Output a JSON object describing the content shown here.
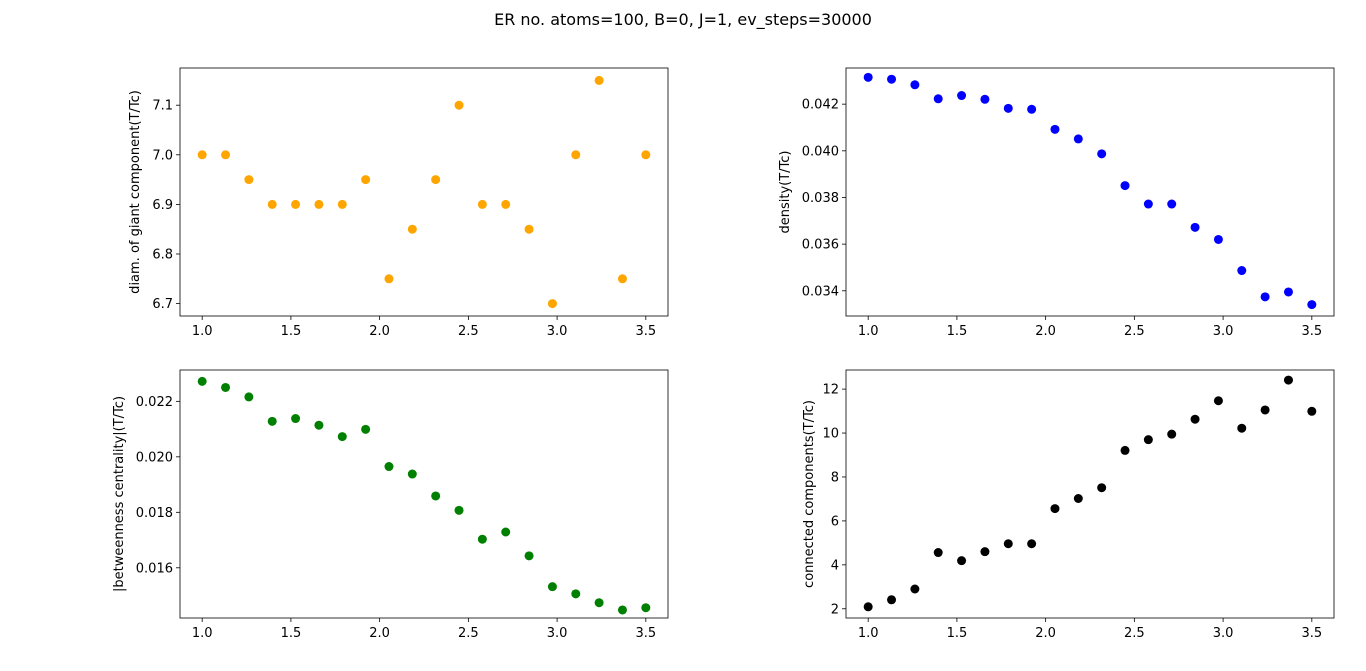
{
  "suptitle": "ER no. atoms=100,  B=0, J=1, ev_steps=30000",
  "chart_data": [
    {
      "type": "scatter",
      "position": "top-left",
      "ylabel": "diam. of giant component(T/Tc)",
      "color": "#ffa500",
      "xlim": [
        0.875,
        3.625
      ],
      "ylim": [
        6.675,
        7.175
      ],
      "xticks": [
        "1.0",
        "1.5",
        "2.0",
        "2.5",
        "3.0",
        "3.5"
      ],
      "xtick_values": [
        1.0,
        1.5,
        2.0,
        2.5,
        3.0,
        3.5
      ],
      "yticks": [
        "6.7",
        "6.8",
        "6.9",
        "7.0",
        "7.1"
      ],
      "ytick_values": [
        6.7,
        6.8,
        6.9,
        7.0,
        7.1
      ],
      "x": [
        1.0,
        1.1316,
        1.2632,
        1.3947,
        1.5263,
        1.6579,
        1.7895,
        1.9211,
        2.0526,
        2.1842,
        2.3158,
        2.4474,
        2.5789,
        2.7105,
        2.8421,
        2.9737,
        3.1053,
        3.2368,
        3.3684,
        3.5
      ],
      "y": [
        7.0,
        7.0,
        6.95,
        6.9,
        6.9,
        6.9,
        6.9,
        6.95,
        6.75,
        6.85,
        6.95,
        7.1,
        6.9,
        6.9,
        6.85,
        6.7,
        7.0,
        7.15,
        6.75,
        7.0
      ]
    },
    {
      "type": "scatter",
      "position": "top-right",
      "ylabel": "density(T/Tc)",
      "color": "#0000ff",
      "xlim": [
        0.875,
        3.625
      ],
      "ylim": [
        0.03292,
        0.04355
      ],
      "xticks": [
        "1.0",
        "1.5",
        "2.0",
        "2.5",
        "3.0",
        "3.5"
      ],
      "xtick_values": [
        1.0,
        1.5,
        2.0,
        2.5,
        3.0,
        3.5
      ],
      "yticks": [
        "0.034",
        "0.036",
        "0.038",
        "0.040",
        "0.042"
      ],
      "ytick_values": [
        0.034,
        0.036,
        0.038,
        0.04,
        0.042
      ],
      "x": [
        1.0,
        1.1316,
        1.2632,
        1.3947,
        1.5263,
        1.6579,
        1.7895,
        1.9211,
        2.0526,
        2.1842,
        2.3158,
        2.4474,
        2.5789,
        2.7105,
        2.8421,
        2.9737,
        3.1053,
        3.2368,
        3.3684,
        3.5
      ],
      "y": [
        0.04315,
        0.04307,
        0.04283,
        0.04223,
        0.04237,
        0.04221,
        0.04182,
        0.04178,
        0.04092,
        0.04051,
        0.03987,
        0.03851,
        0.03772,
        0.03772,
        0.03672,
        0.0362,
        0.03487,
        0.03374,
        0.03395,
        0.03341
      ]
    },
    {
      "type": "scatter",
      "position": "bottom-left",
      "ylabel": "|betweenness centrality|(T/Tc)",
      "color": "#008000",
      "xlim": [
        0.875,
        3.625
      ],
      "ylim": [
        0.01419,
        0.02313
      ],
      "xticks": [
        "1.0",
        "1.5",
        "2.0",
        "2.5",
        "3.0",
        "3.5"
      ],
      "xtick_values": [
        1.0,
        1.5,
        2.0,
        2.5,
        3.0,
        3.5
      ],
      "yticks": [
        "0.016",
        "0.018",
        "0.020",
        "0.022"
      ],
      "ytick_values": [
        0.016,
        0.018,
        0.02,
        0.022
      ],
      "x": [
        1.0,
        1.1316,
        1.2632,
        1.3947,
        1.5263,
        1.6579,
        1.7895,
        1.9211,
        2.0526,
        2.1842,
        2.3158,
        2.4474,
        2.5789,
        2.7105,
        2.8421,
        2.9737,
        3.1053,
        3.2368,
        3.3684,
        3.5
      ],
      "y": [
        0.02272,
        0.0225,
        0.02216,
        0.02128,
        0.02138,
        0.02114,
        0.02073,
        0.02099,
        0.01965,
        0.01938,
        0.01859,
        0.01807,
        0.01703,
        0.01729,
        0.01643,
        0.01532,
        0.01506,
        0.01474,
        0.01448,
        0.01456
      ]
    },
    {
      "type": "scatter",
      "position": "bottom-right",
      "ylabel": "connected components(T/Tc)",
      "color": "#000000",
      "xlim": [
        0.875,
        3.625
      ],
      "ylim": [
        1.58,
        12.87
      ],
      "xticks": [
        "1.0",
        "1.5",
        "2.0",
        "2.5",
        "3.0",
        "3.5"
      ],
      "xtick_values": [
        1.0,
        1.5,
        2.0,
        2.5,
        3.0,
        3.5
      ],
      "yticks": [
        "2",
        "4",
        "6",
        "8",
        "10",
        "12"
      ],
      "ytick_values": [
        2,
        4,
        6,
        8,
        10,
        12
      ],
      "x": [
        1.0,
        1.1316,
        1.2632,
        1.3947,
        1.5263,
        1.6579,
        1.7895,
        1.9211,
        2.0526,
        2.1842,
        2.3158,
        2.4474,
        2.5789,
        2.7105,
        2.8421,
        2.9737,
        3.1053,
        3.2368,
        3.3684,
        3.5
      ],
      "y": [
        2.09,
        2.41,
        2.9,
        4.56,
        4.19,
        4.6,
        4.96,
        4.96,
        6.56,
        7.02,
        7.51,
        9.21,
        9.7,
        9.95,
        10.63,
        11.47,
        10.22,
        11.05,
        12.41,
        10.99
      ]
    }
  ]
}
